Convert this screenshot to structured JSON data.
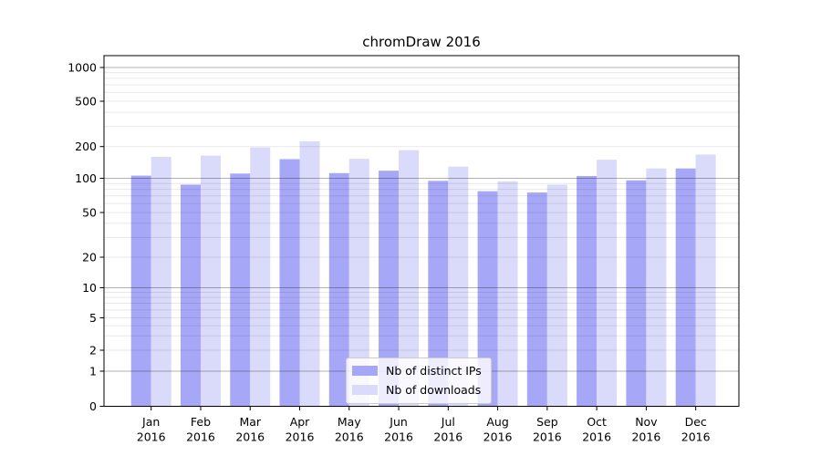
{
  "chart_data": {
    "type": "bar",
    "title": "chromDraw 2016",
    "categories": [
      "Jan",
      "Feb",
      "Mar",
      "Apr",
      "May",
      "Jun",
      "Jul",
      "Aug",
      "Sep",
      "Oct",
      "Nov",
      "Dec"
    ],
    "category_sublabel": "2016",
    "series": [
      {
        "name": "Nb of distinct IPs",
        "color": "#a7a7f7",
        "values": [
          106,
          88,
          111,
          152,
          112,
          118,
          95,
          77,
          75,
          105,
          96,
          124
        ]
      },
      {
        "name": "Nb of downloads",
        "color": "#dadafa",
        "values": [
          160,
          164,
          196,
          222,
          153,
          185,
          129,
          94,
          88,
          150,
          124,
          168
        ]
      }
    ],
    "y_axis": {
      "scale": "symlog",
      "tick_labels": [
        "0",
        "1",
        "2",
        "5",
        "10",
        "20",
        "50",
        "100",
        "200",
        "500",
        "1000"
      ],
      "tick_values": [
        0,
        1,
        2,
        5,
        10,
        20,
        50,
        100,
        200,
        500,
        1000
      ],
      "major_gridline_values": [
        1,
        10,
        100,
        1000
      ],
      "minor_gridline_multiples": [
        2,
        3,
        4,
        5,
        6,
        7,
        8,
        9
      ],
      "minor_gridline_decades": [
        1,
        10,
        100
      ]
    },
    "legend": {
      "entries": [
        "Nb of distinct IPs",
        "Nb of downloads"
      ],
      "location": "lower center"
    },
    "colors": {
      "grid_major": "rgba(0,0,0,0.30)",
      "grid_minor": "rgba(0,0,0,0.09)",
      "spine": "#000000",
      "text": "#000000"
    }
  }
}
